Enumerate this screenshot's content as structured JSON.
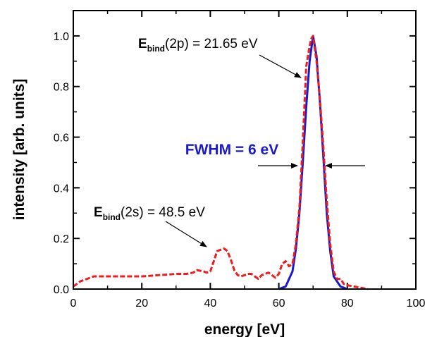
{
  "chart_data": {
    "type": "line",
    "xlabel": "energy [eV]",
    "ylabel": "intensity [arb. units]",
    "xlim": [
      0,
      100
    ],
    "ylim": [
      0,
      1.1
    ],
    "x_ticks": [
      "0",
      "20",
      "40",
      "60",
      "80",
      "100"
    ],
    "y_ticks": [
      "0.0",
      "0.2",
      "0.4",
      "0.6",
      "0.8",
      "1.0"
    ],
    "grid": false,
    "legend": "none",
    "series": [
      {
        "style": "solid",
        "color": "#1a1acc",
        "x": [
          60,
          62,
          64,
          65,
          66,
          67,
          68,
          69,
          70,
          71,
          72,
          73,
          74,
          75,
          76,
          78,
          80
        ],
        "y": [
          0.0,
          0.01,
          0.07,
          0.16,
          0.3,
          0.5,
          0.72,
          0.9,
          1.0,
          0.92,
          0.74,
          0.52,
          0.3,
          0.15,
          0.05,
          0.01,
          0.0
        ]
      },
      {
        "style": "dashed",
        "color": "#ee1c1c",
        "x": [
          0,
          1,
          2,
          3,
          4,
          5,
          6,
          8,
          10,
          15,
          20,
          25,
          30,
          33,
          35,
          36,
          38,
          39,
          40,
          41,
          42,
          43,
          44,
          45,
          46,
          47,
          48,
          49,
          50,
          51,
          52,
          53,
          54,
          55,
          56,
          57,
          58,
          59,
          60,
          61,
          62,
          63,
          64,
          65,
          66,
          67,
          68,
          68.5,
          69,
          69.5,
          70,
          70.5,
          71,
          72,
          73,
          74,
          75,
          76,
          77,
          78,
          79,
          80,
          82,
          84,
          86
        ],
        "y": [
          0.01,
          0.02,
          0.03,
          0.035,
          0.04,
          0.045,
          0.05,
          0.05,
          0.05,
          0.05,
          0.05,
          0.055,
          0.06,
          0.06,
          0.065,
          0.075,
          0.07,
          0.065,
          0.07,
          0.11,
          0.15,
          0.155,
          0.16,
          0.15,
          0.115,
          0.075,
          0.055,
          0.05,
          0.055,
          0.06,
          0.06,
          0.05,
          0.04,
          0.055,
          0.06,
          0.065,
          0.055,
          0.045,
          0.06,
          0.1,
          0.11,
          0.09,
          0.1,
          0.18,
          0.32,
          0.58,
          0.88,
          0.92,
          0.96,
          0.99,
          1.0,
          0.95,
          0.9,
          0.75,
          0.56,
          0.35,
          0.18,
          0.07,
          0.04,
          0.04,
          0.02,
          0.015,
          0.01,
          0.005,
          0.0
        ]
      }
    ],
    "annotations": [
      {
        "prefix": "E",
        "sub": "bind",
        "suffix": "(2p) = 21.65 eV",
        "x": 68.5,
        "y": 0.87
      },
      {
        "prefix": "E",
        "sub": "bind",
        "suffix": "(2s) = 48.5 eV",
        "x": 43,
        "y": 0.17
      },
      {
        "text": "FWHM = 6 eV",
        "color": "#1a1acc",
        "x_left": 67,
        "x_right": 73,
        "y": 0.5
      }
    ]
  }
}
